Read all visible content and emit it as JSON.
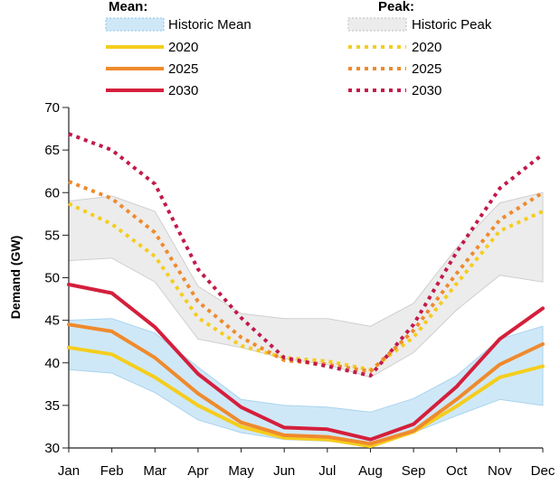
{
  "chart_data": {
    "type": "line",
    "ylabel": "Demand (GW)",
    "xlabel": "",
    "categories": [
      "Jan",
      "Feb",
      "Mar",
      "Apr",
      "May",
      "Jun",
      "Jul",
      "Aug",
      "Sep",
      "Oct",
      "Nov",
      "Dec"
    ],
    "ylim": [
      30,
      70
    ],
    "yticks": [
      30,
      35,
      40,
      45,
      50,
      55,
      60,
      65,
      70
    ],
    "grid": false,
    "legend": {
      "placement": "top",
      "mean_heading": "Mean:",
      "peak_heading": "Peak:",
      "historic_mean_label": "Historic Mean",
      "historic_peak_label": "Historic Peak"
    },
    "historic_mean_band": {
      "name": "Historic Mean",
      "color": "#cfe8f7",
      "lower": [
        39.2,
        38.8,
        36.5,
        33.3,
        31.8,
        31.0,
        30.8,
        30.6,
        31.8,
        33.8,
        35.7,
        35.0
      ],
      "upper": [
        45.0,
        45.2,
        43.5,
        39.5,
        35.7,
        35.0,
        34.8,
        34.2,
        35.8,
        38.5,
        42.8,
        44.3
      ]
    },
    "historic_peak_band": {
      "name": "Historic Peak",
      "color": "#ececec",
      "lower": [
        52.0,
        52.3,
        49.5,
        42.8,
        41.8,
        40.5,
        39.8,
        38.3,
        41.2,
        46.2,
        50.3,
        49.5
      ],
      "upper": [
        59.0,
        59.6,
        57.8,
        49.0,
        45.8,
        45.2,
        45.2,
        44.3,
        47.0,
        53.5,
        58.8,
        60.0
      ]
    },
    "series": [
      {
        "name": "2020",
        "group": "mean",
        "style": "solid",
        "color": "#f5cd1e",
        "values": [
          41.8,
          41.0,
          38.3,
          35.0,
          32.5,
          31.2,
          31.0,
          30.2,
          31.9,
          34.9,
          38.3,
          39.6
        ]
      },
      {
        "name": "2025",
        "group": "mean",
        "style": "solid",
        "color": "#ef8a2d",
        "values": [
          44.5,
          43.7,
          40.6,
          36.4,
          33.0,
          31.5,
          31.3,
          30.5,
          32.0,
          35.7,
          39.8,
          42.2
        ]
      },
      {
        "name": "2030",
        "group": "mean",
        "style": "solid",
        "color": "#d41f3c",
        "values": [
          49.2,
          48.2,
          44.2,
          38.7,
          34.8,
          32.4,
          32.2,
          31.0,
          32.8,
          37.2,
          42.8,
          46.4
        ]
      },
      {
        "name": "2020",
        "group": "peak",
        "style": "dotted",
        "color": "#f5cd1e",
        "values": [
          58.7,
          56.3,
          52.5,
          45.3,
          42.0,
          40.6,
          40.2,
          39.2,
          43.0,
          49.3,
          55.5,
          57.8
        ]
      },
      {
        "name": "2025",
        "group": "peak",
        "style": "dotted",
        "color": "#ef8a2d",
        "values": [
          61.3,
          59.3,
          55.3,
          47.2,
          43.0,
          40.3,
          39.8,
          39.0,
          43.8,
          50.5,
          56.8,
          60.0
        ]
      },
      {
        "name": "2030",
        "group": "peak",
        "style": "dotted",
        "color": "#c21a4a",
        "values": [
          66.9,
          65.0,
          61.0,
          51.0,
          45.3,
          40.6,
          39.6,
          38.5,
          44.5,
          53.0,
          60.5,
          64.5
        ]
      }
    ]
  }
}
